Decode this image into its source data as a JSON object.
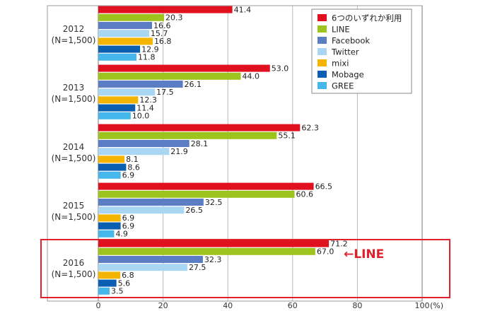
{
  "colors": {
    "highlight_box": "#e0202a",
    "callout": "#e0202a",
    "grid": "#b8b8b8",
    "frame": "#9a9a9a"
  },
  "callout": {
    "text": "←LINE"
  },
  "chart_data": {
    "type": "bar",
    "orientation": "horizontal",
    "categories": [
      [
        "2012",
        "(N=1,500)"
      ],
      [
        "2013",
        "(N=1,500)"
      ],
      [
        "2014",
        "(N=1,500)"
      ],
      [
        "2015",
        "(N=1,500)"
      ],
      [
        "2016",
        "(N=1,500)"
      ]
    ],
    "series": [
      {
        "name": "6つのいずれか利用",
        "color": "#e0101e",
        "values": [
          41.4,
          53.0,
          62.3,
          66.5,
          71.2
        ]
      },
      {
        "name": "LINE",
        "color": "#9dc41c",
        "values": [
          20.3,
          44.0,
          55.1,
          60.6,
          67.0
        ]
      },
      {
        "name": "Facebook",
        "color": "#5a7dc4",
        "values": [
          16.6,
          26.1,
          28.1,
          32.5,
          32.3
        ]
      },
      {
        "name": "Twitter",
        "color": "#a9d6f3",
        "values": [
          15.7,
          17.5,
          21.9,
          26.5,
          27.5
        ]
      },
      {
        "name": "mixi",
        "color": "#f5b400",
        "values": [
          16.8,
          12.3,
          8.1,
          6.9,
          6.8
        ]
      },
      {
        "name": "Mobage",
        "color": "#0a5fb0",
        "values": [
          12.9,
          11.4,
          8.6,
          6.9,
          5.6
        ]
      },
      {
        "name": "GREE",
        "color": "#45b7ea",
        "values": [
          11.8,
          10.0,
          6.9,
          4.9,
          3.5
        ]
      }
    ],
    "value_labels": [
      [
        "41.4",
        "20.3",
        "16.6",
        "15.7",
        "16.8",
        "12.9",
        "11.8"
      ],
      [
        "53.0",
        "44.0",
        "26.1",
        "17.5",
        "12.3",
        "11.4",
        "10.0"
      ],
      [
        "62.3",
        "55.1",
        "28.1",
        "21.9",
        "8.1",
        "8.6",
        "6.9"
      ],
      [
        "66.5",
        "60.6",
        "32.5",
        "26.5",
        "6.9",
        "6.9",
        "4.9"
      ],
      [
        "71.2",
        "67.0",
        "32.3",
        "27.5",
        "6.8",
        "5.6",
        "3.5"
      ]
    ],
    "xlim": [
      0,
      100
    ],
    "xticks": [
      0,
      20,
      40,
      60,
      80,
      100
    ],
    "xtick_labels": [
      "0",
      "20",
      "40",
      "60",
      "80",
      "100"
    ],
    "xunit": "(%)",
    "grid": true,
    "legend": "top-right",
    "highlighted_category": "2016"
  }
}
